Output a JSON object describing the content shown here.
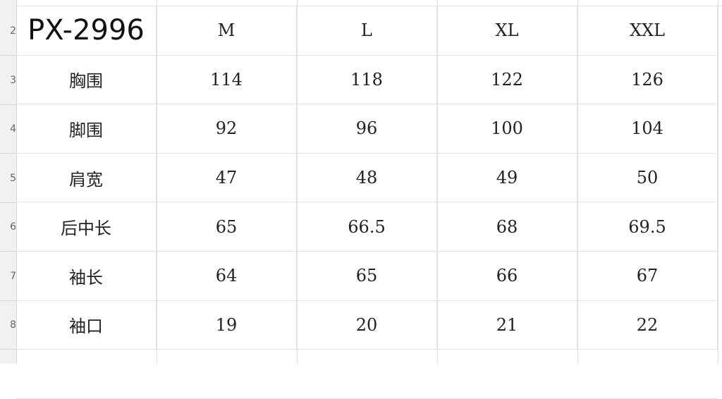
{
  "row_numbers": [
    "2",
    "3",
    "4",
    "5",
    "6",
    "7",
    "8"
  ],
  "header": {
    "title": "PX-2996",
    "sizes": [
      "M",
      "L",
      "XL",
      "XXL"
    ]
  },
  "rows": [
    {
      "label": "胸围",
      "values": [
        "114",
        "118",
        "122",
        "126"
      ]
    },
    {
      "label": "脚围",
      "values": [
        "92",
        "96",
        "100",
        "104"
      ]
    },
    {
      "label": "肩宽",
      "values": [
        "47",
        "48",
        "49",
        "50"
      ]
    },
    {
      "label": "后中长",
      "values": [
        "65",
        "66.5",
        "68",
        "69.5"
      ]
    },
    {
      "label": "袖长",
      "values": [
        "64",
        "65",
        "66",
        "67"
      ]
    },
    {
      "label": "袖口",
      "values": [
        "19",
        "20",
        "21",
        "22"
      ]
    }
  ]
}
